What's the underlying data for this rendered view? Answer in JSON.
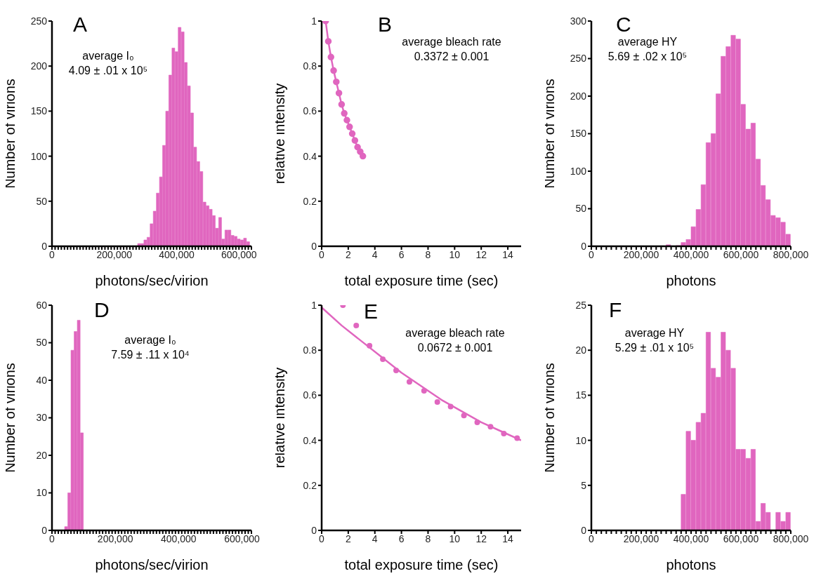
{
  "chart_data": [
    {
      "type": "histogram",
      "title": "A",
      "xlabel": "photons/sec/virion",
      "ylabel": "Number of virions",
      "annotations": [
        "average I₀",
        "4.09 ± .01 x 10⁵"
      ],
      "color": "#e066bf",
      "bins": [
        275000,
        285000,
        295000,
        305000,
        315000,
        325000,
        335000,
        345000,
        355000,
        365000,
        375000,
        385000,
        395000,
        405000,
        415000,
        425000,
        435000,
        445000,
        455000,
        465000,
        475000,
        485000,
        495000,
        505000,
        515000,
        525000,
        535000,
        545000,
        555000,
        565000,
        575000,
        585000,
        595000,
        605000,
        615000,
        625000,
        635000
      ],
      "values": [
        3,
        3,
        7,
        10,
        25,
        39,
        59,
        77,
        112,
        150,
        190,
        220,
        216,
        243,
        238,
        204,
        178,
        148,
        110,
        94,
        83,
        49,
        45,
        41,
        34,
        20,
        32,
        8,
        18,
        18,
        12,
        11,
        8,
        7,
        9,
        5
      ],
      "xlim": [
        0,
        640000
      ],
      "ylim": [
        0,
        250
      ],
      "yticks": [
        0,
        50,
        100,
        150,
        200,
        250
      ],
      "xticks": [
        0,
        {
          "value": 10000,
          "label": null
        },
        {
          "value": 20000,
          "label": null
        },
        {
          "value": 30000,
          "label": null
        },
        {
          "value": 40000,
          "label": null
        },
        {
          "value": 50000,
          "label": null
        },
        {
          "value": 60000,
          "label": null
        },
        {
          "value": 70000,
          "label": null
        },
        {
          "value": 80000,
          "label": null
        },
        {
          "value": 90000,
          "label": null
        },
        {
          "value": 100000,
          "label": null
        },
        {
          "value": 110000,
          "label": null
        },
        {
          "value": 120000,
          "label": null
        },
        {
          "value": 130000,
          "label": null
        },
        {
          "value": 140000,
          "label": null
        },
        {
          "value": 150000,
          "label": null
        },
        {
          "value": 160000,
          "label": null
        },
        {
          "value": 170000,
          "label": null
        },
        {
          "value": 180000,
          "label": null
        },
        {
          "value": 190000,
          "label": null
        },
        {
          "value": 200000,
          "label": "200,000"
        },
        {
          "value": 210000,
          "label": null
        },
        {
          "value": 220000,
          "label": null
        },
        {
          "value": 230000,
          "label": null
        },
        {
          "value": 240000,
          "label": null
        },
        {
          "value": 250000,
          "label": null
        },
        {
          "value": 260000,
          "label": null
        },
        {
          "value": 270000,
          "label": null
        },
        {
          "value": 280000,
          "label": null
        },
        {
          "value": 290000,
          "label": null
        },
        {
          "value": 300000,
          "label": null
        },
        {
          "value": 310000,
          "label": null
        },
        {
          "value": 320000,
          "label": null
        },
        {
          "value": 330000,
          "label": null
        },
        {
          "value": 340000,
          "label": null
        },
        {
          "value": 350000,
          "label": null
        },
        {
          "value": 360000,
          "label": null
        },
        {
          "value": 370000,
          "label": null
        },
        {
          "value": 380000,
          "label": null
        },
        {
          "value": 390000,
          "label": null
        },
        {
          "value": 400000,
          "label": "400,000"
        },
        {
          "value": 410000,
          "label": null
        },
        {
          "value": 420000,
          "label": null
        },
        {
          "value": 430000,
          "label": null
        },
        {
          "value": 440000,
          "label": null
        },
        {
          "value": 450000,
          "label": null
        },
        {
          "value": 460000,
          "label": null
        },
        {
          "value": 470000,
          "label": null
        },
        {
          "value": 480000,
          "label": null
        },
        {
          "value": 490000,
          "label": null
        },
        {
          "value": 500000,
          "label": null
        },
        {
          "value": 510000,
          "label": null
        },
        {
          "value": 520000,
          "label": null
        },
        {
          "value": 530000,
          "label": null
        },
        {
          "value": 540000,
          "label": null
        },
        {
          "value": 550000,
          "label": null
        },
        {
          "value": 560000,
          "label": null
        },
        {
          "value": 570000,
          "label": null
        },
        {
          "value": 580000,
          "label": null
        },
        {
          "value": 590000,
          "label": null
        },
        {
          "value": 600000,
          "label": "600,000"
        },
        {
          "value": 610000,
          "label": null
        },
        {
          "value": 620000,
          "label": null
        },
        {
          "value": 630000,
          "label": null
        },
        {
          "value": 640000,
          "label": null
        }
      ]
    },
    {
      "type": "line",
      "title": "B",
      "xlabel": "total exposure time (sec)",
      "ylabel": "relative intensity",
      "annotations": [
        "average bleach rate",
        "0.3372 ± 0.001"
      ],
      "color": "#e066bf",
      "marker": "circle",
      "x": [
        0.3,
        0.5,
        0.7,
        0.9,
        1.1,
        1.3,
        1.5,
        1.7,
        1.9,
        2.1,
        2.3,
        2.5,
        2.7,
        2.9,
        3.1
      ],
      "values": [
        1.0,
        0.91,
        0.84,
        0.78,
        0.73,
        0.68,
        0.63,
        0.59,
        0.56,
        0.53,
        0.5,
        0.47,
        0.44,
        0.42,
        0.4
      ],
      "xlim": [
        0,
        15
      ],
      "xticks": [
        0,
        2,
        4,
        6,
        8,
        10,
        12,
        14
      ],
      "ylim": [
        0,
        1
      ],
      "yticks": [
        0,
        0.2,
        0.4,
        0.6,
        0.8,
        1
      ]
    },
    {
      "type": "histogram",
      "title": "C",
      "xlabel": "photons",
      "ylabel": "Number of virions",
      "annotations": [
        "average HY",
        "5.69 ± .02 x 10⁵"
      ],
      "color": "#e066bf",
      "bins": [
        300000,
        320000,
        340000,
        360000,
        380000,
        400000,
        420000,
        440000,
        460000,
        480000,
        500000,
        520000,
        540000,
        560000,
        580000,
        600000,
        620000,
        640000,
        660000,
        680000,
        700000,
        720000,
        740000,
        760000,
        780000,
        800000
      ],
      "values": [
        2,
        0,
        1,
        5,
        9,
        26,
        49,
        82,
        138,
        150,
        203,
        253,
        266,
        281,
        276,
        189,
        156,
        164,
        116,
        81,
        62,
        41,
        38,
        32,
        16
      ],
      "xlim": [
        0,
        800000
      ],
      "ylim": [
        0,
        300
      ],
      "yticks": [
        0,
        50,
        100,
        150,
        200,
        250,
        300
      ],
      "xticks": [
        0,
        {
          "value": 20000,
          "label": null
        },
        {
          "value": 40000,
          "label": null
        },
        {
          "value": 60000,
          "label": null
        },
        {
          "value": 80000,
          "label": null
        },
        {
          "value": 100000,
          "label": null
        },
        {
          "value": 120000,
          "label": null
        },
        {
          "value": 140000,
          "label": null
        },
        {
          "value": 160000,
          "label": null
        },
        {
          "value": 180000,
          "label": null
        },
        {
          "value": 200000,
          "label": "200,000"
        },
        {
          "value": 220000,
          "label": null
        },
        {
          "value": 240000,
          "label": null
        },
        {
          "value": 260000,
          "label": null
        },
        {
          "value": 280000,
          "label": null
        },
        {
          "value": 300000,
          "label": null
        },
        {
          "value": 320000,
          "label": null
        },
        {
          "value": 340000,
          "label": null
        },
        {
          "value": 360000,
          "label": null
        },
        {
          "value": 380000,
          "label": null
        },
        {
          "value": 400000,
          "label": "400,000"
        },
        {
          "value": 420000,
          "label": null
        },
        {
          "value": 440000,
          "label": null
        },
        {
          "value": 460000,
          "label": null
        },
        {
          "value": 480000,
          "label": null
        },
        {
          "value": 500000,
          "label": null
        },
        {
          "value": 520000,
          "label": null
        },
        {
          "value": 540000,
          "label": null
        },
        {
          "value": 560000,
          "label": null
        },
        {
          "value": 580000,
          "label": null
        },
        {
          "value": 600000,
          "label": "600,000"
        },
        {
          "value": 620000,
          "label": null
        },
        {
          "value": 640000,
          "label": null
        },
        {
          "value": 660000,
          "label": null
        },
        {
          "value": 680000,
          "label": null
        },
        {
          "value": 700000,
          "label": null
        },
        {
          "value": 720000,
          "label": null
        },
        {
          "value": 740000,
          "label": null
        },
        {
          "value": 760000,
          "label": null
        },
        {
          "value": 780000,
          "label": null
        },
        {
          "value": 800000,
          "label": "800,000"
        }
      ]
    },
    {
      "type": "histogram",
      "title": "D",
      "xlabel": "photons/sec/virion",
      "ylabel": "Number of virions",
      "annotations": [
        "average I₀",
        "7.59 ± .11 x 10⁴"
      ],
      "color": "#e066bf",
      "bins": [
        40000,
        50000,
        60000,
        70000,
        80000,
        90000,
        100000
      ],
      "values": [
        1,
        10,
        48,
        53,
        56,
        26
      ],
      "xlim": [
        0,
        630000
      ],
      "ylim": [
        0,
        60
      ],
      "yticks": [
        0,
        10,
        20,
        30,
        40,
        50,
        60
      ],
      "xticks": [
        0,
        {
          "value": 10000,
          "label": null
        },
        {
          "value": 20000,
          "label": null
        },
        {
          "value": 30000,
          "label": null
        },
        {
          "value": 40000,
          "label": null
        },
        {
          "value": 50000,
          "label": null
        },
        {
          "value": 60000,
          "label": null
        },
        {
          "value": 70000,
          "label": null
        },
        {
          "value": 80000,
          "label": null
        },
        {
          "value": 90000,
          "label": null
        },
        {
          "value": 100000,
          "label": null
        },
        {
          "value": 110000,
          "label": null
        },
        {
          "value": 120000,
          "label": null
        },
        {
          "value": 130000,
          "label": null
        },
        {
          "value": 140000,
          "label": null
        },
        {
          "value": 150000,
          "label": null
        },
        {
          "value": 160000,
          "label": null
        },
        {
          "value": 170000,
          "label": null
        },
        {
          "value": 180000,
          "label": null
        },
        {
          "value": 190000,
          "label": null
        },
        {
          "value": 200000,
          "label": "200,000"
        },
        {
          "value": 210000,
          "label": null
        },
        {
          "value": 220000,
          "label": null
        },
        {
          "value": 230000,
          "label": null
        },
        {
          "value": 240000,
          "label": null
        },
        {
          "value": 250000,
          "label": null
        },
        {
          "value": 260000,
          "label": null
        },
        {
          "value": 270000,
          "label": null
        },
        {
          "value": 280000,
          "label": null
        },
        {
          "value": 290000,
          "label": null
        },
        {
          "value": 300000,
          "label": null
        },
        {
          "value": 310000,
          "label": null
        },
        {
          "value": 320000,
          "label": null
        },
        {
          "value": 330000,
          "label": null
        },
        {
          "value": 340000,
          "label": null
        },
        {
          "value": 350000,
          "label": null
        },
        {
          "value": 360000,
          "label": null
        },
        {
          "value": 370000,
          "label": null
        },
        {
          "value": 380000,
          "label": null
        },
        {
          "value": 390000,
          "label": null
        },
        {
          "value": 400000,
          "label": "400,000"
        },
        {
          "value": 410000,
          "label": null
        },
        {
          "value": 420000,
          "label": null
        },
        {
          "value": 430000,
          "label": null
        },
        {
          "value": 440000,
          "label": null
        },
        {
          "value": 450000,
          "label": null
        },
        {
          "value": 460000,
          "label": null
        },
        {
          "value": 470000,
          "label": null
        },
        {
          "value": 480000,
          "label": null
        },
        {
          "value": 490000,
          "label": null
        },
        {
          "value": 500000,
          "label": null
        },
        {
          "value": 510000,
          "label": null
        },
        {
          "value": 520000,
          "label": null
        },
        {
          "value": 530000,
          "label": null
        },
        {
          "value": 540000,
          "label": null
        },
        {
          "value": 550000,
          "label": null
        },
        {
          "value": 560000,
          "label": null
        },
        {
          "value": 570000,
          "label": null
        },
        {
          "value": 580000,
          "label": null
        },
        {
          "value": 590000,
          "label": null
        },
        {
          "value": 600000,
          "label": "600,000"
        },
        {
          "value": 610000,
          "label": null
        },
        {
          "value": 620000,
          "label": null
        },
        {
          "value": 630000,
          "label": null
        }
      ]
    },
    {
      "type": "scatter",
      "title": "E",
      "xlabel": "total exposure time (sec)",
      "ylabel": "relative intensity",
      "annotations": [
        "average bleach rate",
        "0.0672 ± 0.001"
      ],
      "series": [
        {
          "color": "#e066bf",
          "x": [
            1.6,
            2.6,
            3.6,
            4.6,
            5.6,
            6.6,
            7.7,
            8.7,
            9.7,
            10.7,
            11.7,
            12.7,
            13.7,
            14.7
          ],
          "values": [
            1.0,
            0.91,
            0.82,
            0.76,
            0.71,
            0.66,
            0.62,
            0.57,
            0.55,
            0.51,
            0.48,
            0.46,
            0.43,
            0.41
          ]
        },
        {
          "type": "line",
          "color": "#e066bf",
          "marker": "none",
          "x": [
            0,
            1.5,
            3,
            4.5,
            6,
            7.5,
            9,
            10.5,
            12,
            13.5,
            15
          ],
          "values": [
            0.99,
            0.91,
            0.84,
            0.77,
            0.7,
            0.64,
            0.58,
            0.53,
            0.48,
            0.44,
            0.4
          ]
        }
      ],
      "xlim": [
        0,
        15
      ],
      "xticks": [
        0,
        2,
        4,
        6,
        8,
        10,
        12,
        14
      ],
      "ylim": [
        0,
        1
      ],
      "yticks": [
        0,
        0.2,
        0.4,
        0.6,
        0.8,
        1
      ]
    },
    {
      "type": "histogram",
      "title": "F",
      "xlabel": "photons",
      "ylabel": "Number of virions",
      "annotations": [
        "average HY",
        "5.29 ± .01 x 10⁵"
      ],
      "color": "#e066bf",
      "bins": [
        360000,
        380000,
        400000,
        420000,
        440000,
        460000,
        480000,
        500000,
        520000,
        540000,
        560000,
        580000,
        600000,
        620000,
        640000,
        660000,
        680000,
        700000,
        720000,
        740000,
        760000,
        780000,
        800000
      ],
      "values": [
        4,
        11,
        10,
        12,
        13,
        22,
        18,
        17,
        22,
        20,
        18,
        9,
        9,
        8,
        9,
        1,
        3,
        2,
        0,
        2,
        1,
        2
      ],
      "xlim": [
        0,
        800000
      ],
      "ylim": [
        0,
        25
      ],
      "yticks": [
        0,
        5,
        10,
        15,
        20,
        25
      ],
      "xticks": [
        0,
        {
          "value": 20000,
          "label": null
        },
        {
          "value": 40000,
          "label": null
        },
        {
          "value": 60000,
          "label": null
        },
        {
          "value": 80000,
          "label": null
        },
        {
          "value": 100000,
          "label": null
        },
        {
          "value": 120000,
          "label": null
        },
        {
          "value": 140000,
          "label": null
        },
        {
          "value": 160000,
          "label": null
        },
        {
          "value": 180000,
          "label": null
        },
        {
          "value": 200000,
          "label": "200,000"
        },
        {
          "value": 220000,
          "label": null
        },
        {
          "value": 240000,
          "label": null
        },
        {
          "value": 260000,
          "label": null
        },
        {
          "value": 280000,
          "label": null
        },
        {
          "value": 300000,
          "label": null
        },
        {
          "value": 320000,
          "label": null
        },
        {
          "value": 340000,
          "label": null
        },
        {
          "value": 360000,
          "label": null
        },
        {
          "value": 380000,
          "label": null
        },
        {
          "value": 400000,
          "label": "400,000"
        },
        {
          "value": 420000,
          "label": null
        },
        {
          "value": 440000,
          "label": null
        },
        {
          "value": 460000,
          "label": null
        },
        {
          "value": 480000,
          "label": null
        },
        {
          "value": 500000,
          "label": null
        },
        {
          "value": 520000,
          "label": null
        },
        {
          "value": 540000,
          "label": null
        },
        {
          "value": 560000,
          "label": null
        },
        {
          "value": 580000,
          "label": null
        },
        {
          "value": 600000,
          "label": "600,000"
        },
        {
          "value": 620000,
          "label": null
        },
        {
          "value": 640000,
          "label": null
        },
        {
          "value": 660000,
          "label": null
        },
        {
          "value": 680000,
          "label": null
        },
        {
          "value": 700000,
          "label": null
        },
        {
          "value": 720000,
          "label": null
        },
        {
          "value": 740000,
          "label": null
        },
        {
          "value": 760000,
          "label": null
        },
        {
          "value": 780000,
          "label": null
        },
        {
          "value": 800000,
          "label": "800,000"
        }
      ]
    }
  ]
}
